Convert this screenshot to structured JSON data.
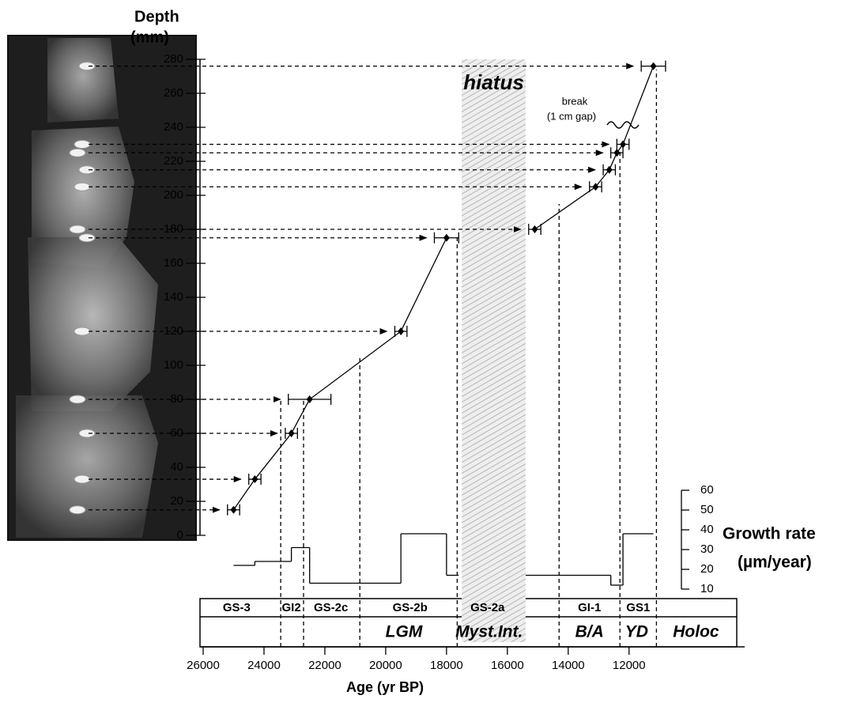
{
  "chart_data": {
    "type": "scatter",
    "ylabel": [
      "Depth",
      "(mm)"
    ],
    "xlabel": "Age (yr BP)",
    "xlim": [
      26000,
      8200
    ],
    "xticks": [
      26000,
      24000,
      22000,
      20000,
      18000,
      16000,
      14000,
      12000
    ],
    "ylim": [
      0,
      280
    ],
    "yticks": [
      0,
      20,
      40,
      60,
      80,
      100,
      120,
      140,
      160,
      180,
      200,
      220,
      240,
      260,
      280
    ],
    "series": [
      {
        "color": "#000000",
        "x": [
          25000,
          24300,
          23100,
          22500,
          19500,
          18000
        ],
        "xerr": [
          200,
          200,
          200,
          700,
          200,
          400
        ],
        "values": [
          15,
          33,
          60,
          80,
          120,
          175
        ]
      },
      {
        "color": "#000000",
        "x": [
          15100,
          13100,
          12650,
          12400,
          12200,
          11200
        ],
        "xerr": [
          200,
          200,
          200,
          200,
          200,
          400
        ],
        "values": [
          180,
          205,
          215,
          225,
          230,
          276
        ]
      }
    ],
    "growth_rate": {
      "ylabel": [
        "Growth rate",
        "(µm/year)"
      ],
      "ylim": [
        10,
        60
      ],
      "yticks": [
        10,
        20,
        30,
        40,
        50,
        60
      ],
      "bins": [
        25000,
        24300,
        23100,
        22500,
        19500,
        18000,
        17600,
        15400,
        12600,
        12200,
        11200
      ],
      "values": [
        22,
        24,
        31,
        13,
        38,
        17,
        null,
        17,
        12,
        38
      ]
    },
    "hiatus": {
      "label": "hiatus",
      "range": [
        17500,
        15400
      ]
    },
    "break": {
      "label": [
        "break",
        "(1 cm gap)"
      ]
    },
    "boundaries": [
      23450,
      22700,
      20850,
      17650,
      14300,
      12300,
      11100
    ],
    "stages": [
      {
        "label": "GS-3",
        "age": 24900
      },
      {
        "label": "GI2",
        "age": 23100
      },
      {
        "label": "GS-2c",
        "age": 21800
      },
      {
        "label": "GS-2b",
        "age": 19200
      },
      {
        "label": "GS-2a",
        "age": 16650
      },
      {
        "label": "GI-1",
        "age": 13300
      },
      {
        "label": "GS1",
        "age": 11700
      }
    ],
    "periods": [
      {
        "label": "LGM",
        "age": 19400
      },
      {
        "label": "Myst.Int.",
        "age": 16600
      },
      {
        "label": "B/A",
        "age": 13300
      },
      {
        "label": "YD",
        "age": 11750
      },
      {
        "label": "Holoc",
        "age": 9800
      }
    ]
  }
}
